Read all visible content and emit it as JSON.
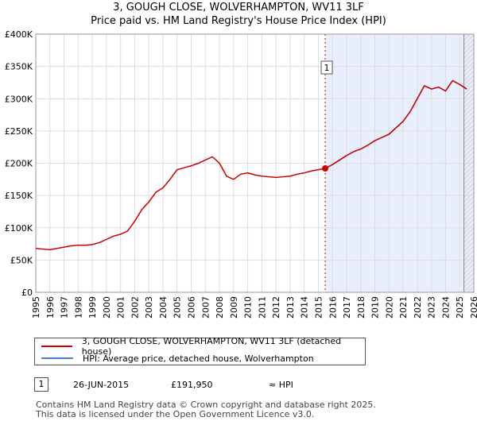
{
  "chart_data": {
    "type": "line",
    "title": "3, GOUGH CLOSE, WOLVERHAMPTON, WV11 3LF",
    "subtitle": "Price paid vs. HM Land Registry's House Price Index (HPI)",
    "xlabel": "",
    "ylabel": "",
    "xlim": [
      1995,
      2026
    ],
    "ylim": [
      0,
      400000
    ],
    "y_ticks": [
      0,
      50000,
      100000,
      150000,
      200000,
      250000,
      300000,
      350000,
      400000
    ],
    "y_tick_labels": [
      "£0",
      "£50K",
      "£100K",
      "£150K",
      "£200K",
      "£250K",
      "£300K",
      "£350K",
      "£400K"
    ],
    "x_ticks": [
      1995,
      1996,
      1997,
      1998,
      1999,
      2000,
      2001,
      2002,
      2003,
      2004,
      2005,
      2006,
      2007,
      2008,
      2009,
      2010,
      2011,
      2012,
      2013,
      2014,
      2015,
      2016,
      2017,
      2018,
      2019,
      2020,
      2021,
      2022,
      2023,
      2024,
      2025,
      2026
    ],
    "x_tick_labels": [
      "1995",
      "1996",
      "1997",
      "1998",
      "1999",
      "2000",
      "2001",
      "2002",
      "2003",
      "2004",
      "2005",
      "2006",
      "2007",
      "2008",
      "2009",
      "2010",
      "2011",
      "2012",
      "2013",
      "2014",
      "2015",
      "2016",
      "2017",
      "2018",
      "2019",
      "2020",
      "2021",
      "2022",
      "2023",
      "2024",
      "2025",
      "2026"
    ],
    "grid": true,
    "series": [
      {
        "name": "3, GOUGH CLOSE, WOLVERHAMPTON, WV11 3LF (detached house)",
        "color": "#cc0000",
        "x": [
          1995.0,
          1995.5,
          1996.0,
          1996.5,
          1997.0,
          1997.5,
          1998.0,
          1998.5,
          1999.0,
          1999.5,
          2000.0,
          2000.5,
          2001.0,
          2001.5,
          2002.0,
          2002.5,
          2003.0,
          2003.5,
          2004.0,
          2004.5,
          2005.0,
          2005.5,
          2006.0,
          2006.5,
          2007.0,
          2007.5,
          2008.0,
          2008.5,
          2009.0,
          2009.5,
          2010.0,
          2010.5,
          2011.0,
          2011.5,
          2012.0,
          2012.5,
          2013.0,
          2013.5,
          2014.0,
          2014.5,
          2015.0,
          2015.5,
          2016.0,
          2016.5,
          2017.0,
          2017.5,
          2018.0,
          2018.5,
          2019.0,
          2019.5,
          2020.0,
          2020.5,
          2021.0,
          2021.5,
          2022.0,
          2022.5,
          2023.0,
          2023.5,
          2024.0,
          2024.5,
          2025.0,
          2025.5
        ],
        "values": [
          68000,
          67000,
          66000,
          68000,
          70000,
          72000,
          73000,
          73000,
          74000,
          77000,
          82000,
          87000,
          90000,
          95000,
          110000,
          128000,
          140000,
          155000,
          162000,
          175000,
          190000,
          193000,
          196000,
          200000,
          205000,
          210000,
          200000,
          180000,
          175000,
          183000,
          185000,
          182000,
          180000,
          179000,
          178000,
          179000,
          180000,
          183000,
          185000,
          188000,
          190000,
          191950,
          198000,
          205000,
          212000,
          218000,
          222000,
          228000,
          235000,
          240000,
          245000,
          255000,
          265000,
          280000,
          300000,
          320000,
          315000,
          318000,
          312000,
          328000,
          322000,
          315000
        ]
      },
      {
        "name": "HPI: Average price, detached house, Wolverhampton",
        "color": "#4a7fd4",
        "x": [
          2015.5,
          2016.0,
          2016.5,
          2017.0,
          2017.5,
          2018.0,
          2018.5,
          2019.0,
          2019.5,
          2020.0,
          2020.5,
          2021.0,
          2021.5,
          2022.0,
          2022.5,
          2023.0,
          2023.5,
          2024.0,
          2024.5,
          2025.0,
          2025.5
        ],
        "values": [
          191950,
          198000,
          205000,
          212000,
          218000,
          222000,
          228000,
          235000,
          240000,
          245000,
          255000,
          265000,
          280000,
          300000,
          320000,
          315000,
          318000,
          312000,
          328000,
          322000,
          315000
        ]
      }
    ],
    "sales": [
      {
        "label": "1",
        "x": 2015.48,
        "value": 191950
      }
    ],
    "shaded_from": 2015.48,
    "forecast_from": 2025.3
  },
  "legend": {
    "series1": "3, GOUGH CLOSE, WOLVERHAMPTON, WV11 3LF (detached house)",
    "series2": "HPI: Average price, detached house, Wolverhampton"
  },
  "transaction": {
    "label": "1",
    "date": "26-JUN-2015",
    "price": "£191,950",
    "relation": "≈ HPI"
  },
  "footer": {
    "line1": "Contains HM Land Registry data © Crown copyright and database right 2025.",
    "line2": "This data is licensed under the Open Government Licence v3.0."
  }
}
